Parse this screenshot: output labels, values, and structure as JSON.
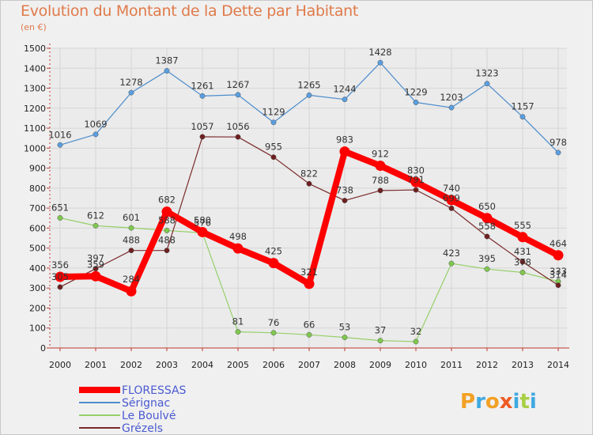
{
  "header": {
    "title": "Evolution du Montant de la Dette par Habitant",
    "unit": "(en €)"
  },
  "brand": {
    "logo_text": "Proxiti",
    "colors": [
      "#f2a024",
      "#3fa9e0",
      "#f2a024",
      "#ef5a24",
      "#3fa9e0",
      "#a8cf45",
      "#3fa9e0"
    ]
  },
  "chart_data": {
    "type": "line",
    "title": "Evolution du Montant de la Dette par Habitant",
    "ylabel": "(en €)",
    "ylim": [
      0,
      1500
    ],
    "yticks": [
      0,
      100,
      200,
      300,
      400,
      500,
      600,
      700,
      800,
      900,
      1000,
      1100,
      1200,
      1300,
      1400,
      1500
    ],
    "grid": true,
    "legend_position": "bottom-left",
    "x": [
      "2000",
      "2001",
      "2002",
      "2003",
      "2004",
      "2005",
      "2006",
      "2007",
      "2008",
      "2009",
      "2010",
      "2011",
      "2012",
      "2013",
      "2014"
    ],
    "series": [
      {
        "name": "Sérignac",
        "color": "#4b8ccc",
        "marker": "#5a9ee0",
        "width": 1.2,
        "radius": 3.2,
        "values": [
          1016,
          1069,
          1278,
          1387,
          1261,
          1267,
          1129,
          1265,
          1244,
          1428,
          1229,
          1203,
          1323,
          1157,
          978
        ],
        "labels": [
          "1016",
          "1069",
          "1278",
          "1387",
          "1261",
          "1267",
          "1129",
          "1265",
          "1244",
          "1428",
          "1229",
          "1203",
          "1323",
          "1157",
          "978"
        ]
      },
      {
        "name": "Le Boulvé",
        "color": "#95d06a",
        "marker": "#7fc84e",
        "width": 1.2,
        "radius": 3.2,
        "values": [
          651,
          612,
          601,
          588,
          576,
          81,
          76,
          66,
          53,
          37,
          32,
          423,
          395,
          378,
          333
        ],
        "labels": [
          "651",
          "612",
          "601",
          "588",
          "576",
          "81",
          "76",
          "66",
          "53",
          "37",
          "32",
          "423",
          "395",
          "378",
          "333"
        ]
      },
      {
        "name": "Grézels",
        "color": "#7a2a2a",
        "marker": "#6e1f1f",
        "width": 1.2,
        "radius": 3.2,
        "values": [
          305,
          397,
          488,
          488,
          1057,
          1056,
          955,
          822,
          738,
          788,
          791,
          699,
          558,
          431,
          314
        ],
        "labels": [
          "305",
          "397",
          "488",
          "488",
          "1057",
          "1056",
          "955",
          "822",
          "738",
          "788",
          "791",
          "699",
          "558",
          "431",
          "314"
        ]
      },
      {
        "name": "FLORESSAS",
        "color": "#ff0000",
        "marker": "#ff0000",
        "width": 8,
        "radius": 6.5,
        "values": [
          356,
          359,
          284,
          682,
          580,
          498,
          425,
          321,
          983,
          912,
          830,
          740,
          650,
          555,
          464
        ],
        "labels": [
          "356",
          "359",
          "284",
          "682",
          "580",
          "498",
          "425",
          "321",
          "983",
          "912",
          "830",
          "740",
          "650",
          "555",
          "464"
        ]
      }
    ],
    "legend": [
      "FLORESSAS",
      "Sérignac",
      "Le Boulvé",
      "Grézels"
    ]
  }
}
